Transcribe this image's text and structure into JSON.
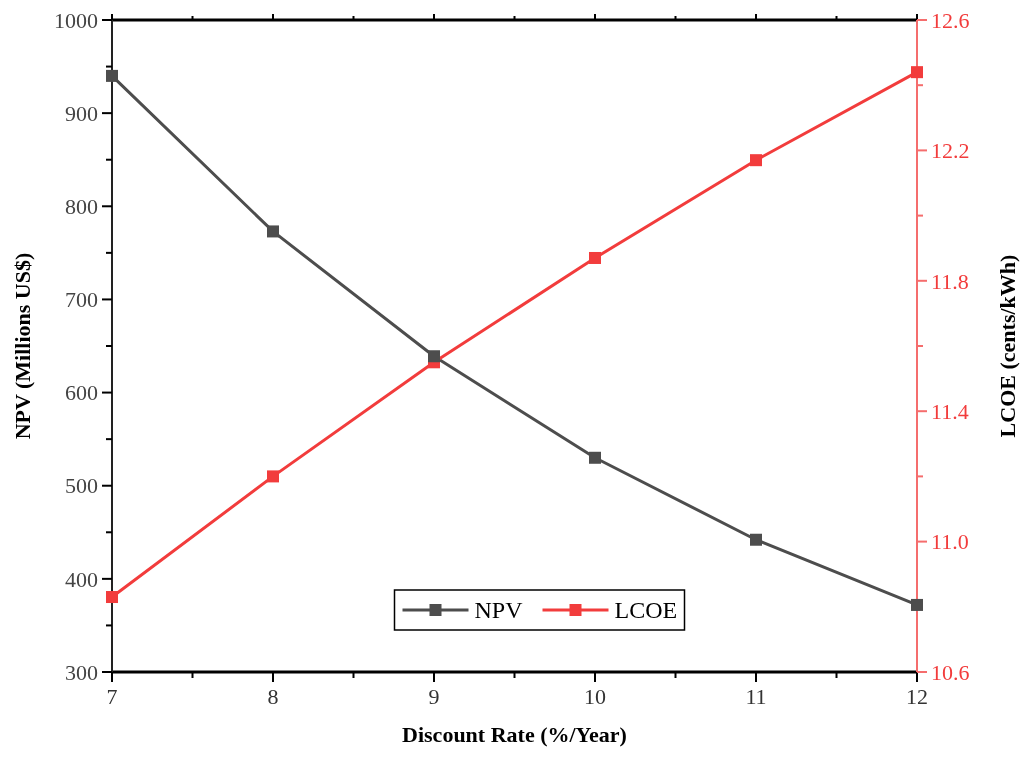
{
  "chart_data": {
    "type": "line",
    "xlabel": "Discount Rate (%/Year)",
    "ylabel": "NPV (Millions US$)",
    "y2label": "LCOE (cents/kWh)",
    "x": [
      7,
      8,
      9,
      10,
      11,
      12
    ],
    "series": [
      {
        "name": "NPV",
        "color": "#4d4d4d",
        "values": [
          940,
          773,
          639,
          530,
          442,
          372
        ]
      },
      {
        "name": "LCOE",
        "color": "#f23c3c",
        "axis": "y2",
        "values": [
          10.83,
          11.2,
          11.55,
          11.87,
          12.17,
          12.44
        ]
      }
    ],
    "xlim": [
      7,
      12
    ],
    "xticks": [
      7,
      {
        "value": 7.5,
        "label": null
      },
      8,
      {
        "value": 8.5,
        "label": null
      },
      9,
      {
        "value": 9.5,
        "label": null
      },
      10,
      {
        "value": 10.5,
        "label": null
      },
      11,
      {
        "value": 11.5,
        "label": null
      },
      12
    ],
    "ylim": [
      300,
      1000
    ],
    "yticks": [
      300,
      {
        "value": 350,
        "label": null
      },
      400,
      {
        "value": 450,
        "label": null
      },
      500,
      {
        "value": 550,
        "label": null
      },
      600,
      {
        "value": 650,
        "label": null
      },
      700,
      {
        "value": 750,
        "label": null
      },
      800,
      {
        "value": 850,
        "label": null
      },
      900,
      {
        "value": 950,
        "label": null
      },
      1000
    ],
    "y2lim": [
      10.6,
      12.6
    ],
    "y2ticks": [
      {
        "value": 10.6,
        "label": "10.6"
      },
      {
        "value": 10.8,
        "label": null
      },
      {
        "value": 11,
        "label": "11.0"
      },
      {
        "value": 11.2,
        "label": null
      },
      {
        "value": 11.4,
        "label": "11.4"
      },
      {
        "value": 11.6,
        "label": null
      },
      {
        "value": 11.8,
        "label": "11.8"
      },
      {
        "value": 12,
        "label": null
      },
      {
        "value": 12.2,
        "label": "12.2"
      },
      {
        "value": 12.4,
        "label": null
      },
      {
        "value": 12.6,
        "label": "12.6"
      }
    ],
    "grid": false,
    "legend": "bottom",
    "marker": "square",
    "line_style": "solid"
  }
}
